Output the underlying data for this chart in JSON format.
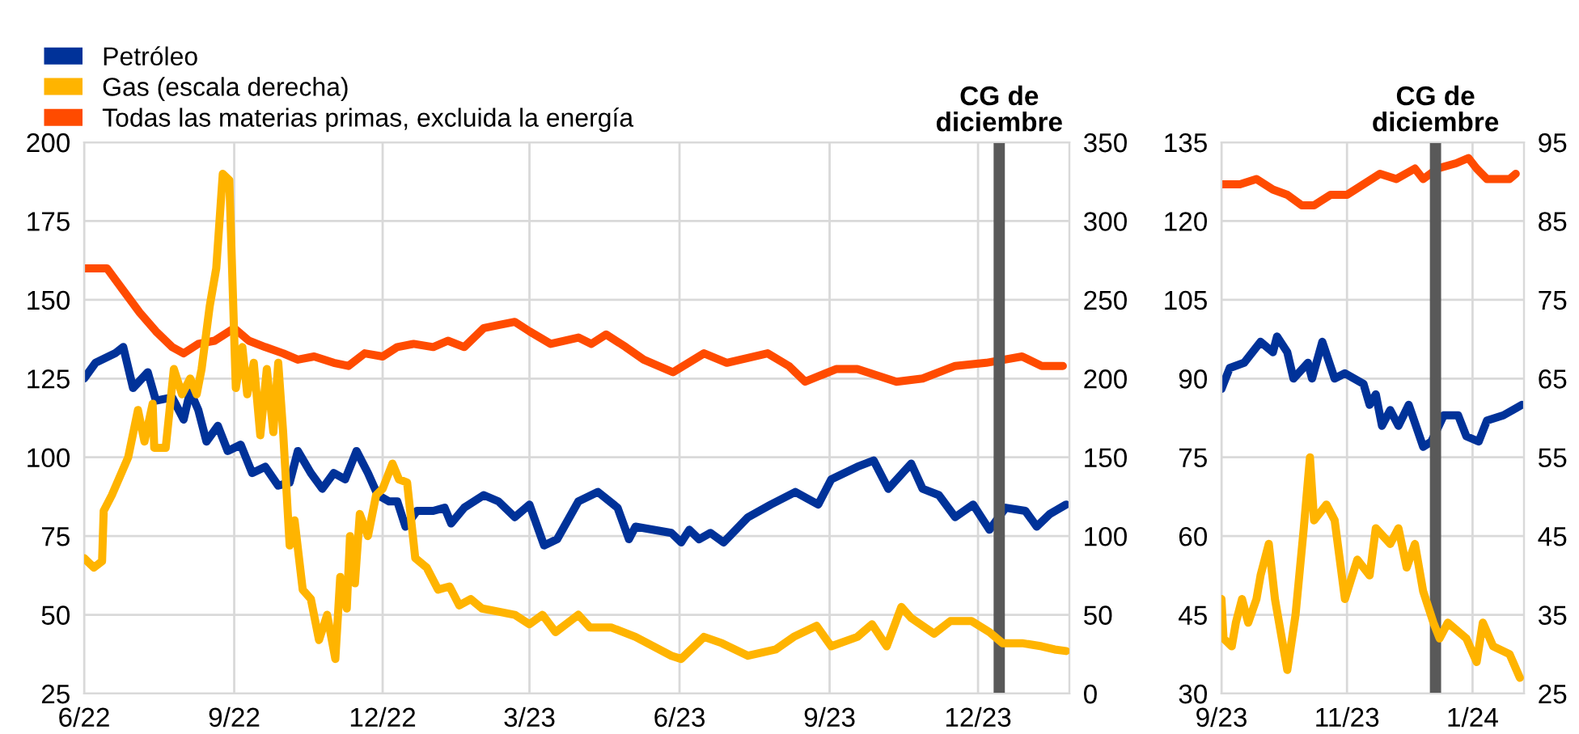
{
  "chart_data": [
    {
      "type": "line",
      "xlim": [
        "2022-06-01",
        "2024-01-26"
      ],
      "xticks": [
        {
          "value": "2022-06-01",
          "label": "6/22"
        },
        {
          "value": "2022-09-01",
          "label": "9/22"
        },
        {
          "value": "2022-12-01",
          "label": "12/22"
        },
        {
          "value": "2023-03-01",
          "label": "3/23"
        },
        {
          "value": "2023-06-01",
          "label": "6/23"
        },
        {
          "value": "2023-09-01",
          "label": "9/23"
        },
        {
          "value": "2023-12-01",
          "label": "12/23"
        }
      ],
      "ylim": [
        25,
        200
      ],
      "yticks": [
        25,
        50,
        75,
        100,
        125,
        150,
        175,
        200
      ],
      "y2lim": [
        0,
        350
      ],
      "y2ticks": [
        0,
        50,
        100,
        150,
        200,
        250,
        300,
        350
      ],
      "grid": true,
      "legend": "top left",
      "line_style": "solid",
      "marker": "none",
      "ref_lines": [
        {
          "axis": "x",
          "value": "2023-12-14",
          "label": "CG de\ndiciembre",
          "color": "#595959"
        }
      ],
      "series": [
        {
          "name": "Petróleo",
          "color": "#003299",
          "x": [
            "2022-06-01",
            "2022-06-08",
            "2022-06-20",
            "2022-06-25",
            "2022-07-01",
            "2022-07-10",
            "2022-07-15",
            "2022-07-25",
            "2022-08-01",
            "2022-08-05",
            "2022-08-10",
            "2022-08-15",
            "2022-08-22",
            "2022-08-28",
            "2022-09-05",
            "2022-09-12",
            "2022-09-20",
            "2022-09-28",
            "2022-10-05",
            "2022-10-10",
            "2022-10-18",
            "2022-10-25",
            "2022-11-01",
            "2022-11-08",
            "2022-11-15",
            "2022-11-22",
            "2022-11-28",
            "2022-12-05",
            "2022-12-10",
            "2022-12-15",
            "2022-12-22",
            "2023-01-01",
            "2023-01-08",
            "2023-01-12",
            "2023-01-20",
            "2023-02-01",
            "2023-02-10",
            "2023-02-20",
            "2023-03-01",
            "2023-03-10",
            "2023-03-18",
            "2023-03-31",
            "2023-04-12",
            "2023-04-24",
            "2023-05-01",
            "2023-05-05",
            "2023-05-27",
            "2023-06-02",
            "2023-06-07",
            "2023-06-13",
            "2023-06-20",
            "2023-06-28",
            "2023-07-13",
            "2023-07-27",
            "2023-08-11",
            "2023-08-25",
            "2023-09-02",
            "2023-09-18",
            "2023-09-28",
            "2023-10-07",
            "2023-10-21",
            "2023-10-28",
            "2023-11-07",
            "2023-11-17",
            "2023-11-28",
            "2023-12-08",
            "2023-12-18",
            "2023-12-30",
            "2024-01-06",
            "2024-01-14",
            "2024-01-24"
          ],
          "values": [
            125,
            130,
            133,
            135,
            122,
            127,
            118,
            119,
            112,
            121,
            115,
            105,
            110,
            102,
            104,
            95,
            97,
            91,
            92,
            102,
            95,
            90,
            95,
            93,
            102,
            95,
            88,
            86,
            86,
            78,
            83,
            83,
            84,
            79,
            84,
            88,
            86,
            81,
            85,
            72,
            74,
            86,
            89,
            84,
            74,
            78,
            76,
            73,
            77,
            74,
            76,
            73,
            81,
            85,
            89,
            85,
            93,
            97,
            99,
            90,
            98,
            90,
            88,
            81,
            85,
            77,
            84,
            83,
            78,
            82,
            85
          ]
        },
        {
          "name": "Gas (escala derecha)",
          "color": "#ffb400",
          "axis": "y2",
          "x": [
            "2022-06-01",
            "2022-06-07",
            "2022-06-12",
            "2022-06-13",
            "2022-06-18",
            "2022-06-28",
            "2022-07-04",
            "2022-07-08",
            "2022-07-13",
            "2022-07-14",
            "2022-07-21",
            "2022-07-26",
            "2022-07-31",
            "2022-08-05",
            "2022-08-09",
            "2022-08-12",
            "2022-08-17",
            "2022-08-21",
            "2022-08-25",
            "2022-08-29",
            "2022-09-02",
            "2022-09-06",
            "2022-09-09",
            "2022-09-13",
            "2022-09-17",
            "2022-09-21",
            "2022-09-25",
            "2022-09-28",
            "2022-10-01",
            "2022-10-05",
            "2022-10-08",
            "2022-10-13",
            "2022-10-18",
            "2022-10-23",
            "2022-10-28",
            "2022-11-02",
            "2022-11-05",
            "2022-11-09",
            "2022-11-11",
            "2022-11-14",
            "2022-11-17",
            "2022-11-22",
            "2022-11-27",
            "2022-12-01",
            "2022-12-07",
            "2022-12-11",
            "2022-12-16",
            "2022-12-21",
            "2022-12-28",
            "2023-01-04",
            "2023-01-11",
            "2023-01-17",
            "2023-01-24",
            "2023-01-31",
            "2023-02-10",
            "2023-02-20",
            "2023-03-01",
            "2023-03-09",
            "2023-03-17",
            "2023-03-31",
            "2023-04-07",
            "2023-04-20",
            "2023-05-05",
            "2023-05-27",
            "2023-06-02",
            "2023-06-10",
            "2023-06-16",
            "2023-06-27",
            "2023-07-13",
            "2023-07-30",
            "2023-08-10",
            "2023-08-24",
            "2023-09-02",
            "2023-09-18",
            "2023-09-27",
            "2023-10-06",
            "2023-10-15",
            "2023-10-21",
            "2023-11-04",
            "2023-11-14",
            "2023-11-27",
            "2023-12-08",
            "2023-12-16",
            "2023-12-28",
            "2024-01-09",
            "2024-01-17",
            "2024-01-24"
          ],
          "values": [
            86,
            80,
            84,
            116,
            126,
            150,
            180,
            160,
            184,
            156,
            156,
            206,
            190,
            200,
            190,
            206,
            246,
            270,
            330,
            326,
            194,
            220,
            190,
            210,
            164,
            206,
            166,
            210,
            166,
            94,
            110,
            66,
            60,
            34,
            50,
            22,
            74,
            54,
            100,
            70,
            114,
            100,
            126,
            130,
            146,
            136,
            134,
            86,
            80,
            66,
            68,
            56,
            60,
            54,
            52,
            50,
            44,
            50,
            39,
            50,
            42,
            42,
            36,
            24,
            22,
            30,
            36,
            32,
            24,
            28,
            36,
            43,
            30,
            36,
            44,
            30,
            55,
            48,
            38,
            46,
            46,
            39,
            32,
            32,
            30,
            28,
            27
          ]
        },
        {
          "name": "Todas las materias primas, excluida la energía",
          "color": "#ff4b00",
          "x": [
            "2022-06-01",
            "2022-06-15",
            "2022-06-25",
            "2022-07-05",
            "2022-07-15",
            "2022-07-25",
            "2022-08-01",
            "2022-08-10",
            "2022-08-20",
            "2022-09-01",
            "2022-09-10",
            "2022-09-20",
            "2022-10-01",
            "2022-10-10",
            "2022-10-20",
            "2022-11-01",
            "2022-11-10",
            "2022-11-20",
            "2022-12-01",
            "2022-12-10",
            "2022-12-20",
            "2023-01-01",
            "2023-01-10",
            "2023-01-20",
            "2023-02-01",
            "2023-02-10",
            "2023-02-20",
            "2023-03-01",
            "2023-03-14",
            "2023-03-31",
            "2023-04-08",
            "2023-04-17",
            "2023-04-29",
            "2023-05-10",
            "2023-05-28",
            "2023-06-16",
            "2023-06-30",
            "2023-07-25",
            "2023-08-07",
            "2023-08-17",
            "2023-09-05",
            "2023-09-18",
            "2023-10-12",
            "2023-10-28",
            "2023-11-17",
            "2023-12-06",
            "2023-12-28",
            "2024-01-09",
            "2024-01-22"
          ],
          "values": [
            160,
            160,
            153,
            146,
            140,
            135,
            133,
            136,
            137,
            141,
            137,
            135,
            133,
            131,
            132,
            130,
            129,
            133,
            132,
            135,
            136,
            135,
            137,
            135,
            141,
            142,
            143,
            140,
            136,
            138,
            136,
            139,
            135,
            131,
            127,
            133,
            130,
            133,
            129,
            124,
            128,
            128,
            124,
            125,
            129,
            130,
            132,
            129,
            129
          ]
        }
      ]
    },
    {
      "type": "line",
      "xlim": [
        "2023-09-01",
        "2024-01-26"
      ],
      "xticks": [
        {
          "value": "2023-09-01",
          "label": "9/23"
        },
        {
          "value": "2023-11-01",
          "label": "11/23"
        },
        {
          "value": "2024-01-01",
          "label": "1/24"
        }
      ],
      "ylim": [
        30,
        135
      ],
      "yticks": [
        30,
        45,
        60,
        75,
        90,
        105,
        120,
        135
      ],
      "y2lim": [
        25,
        95
      ],
      "y2ticks": [
        25,
        35,
        45,
        55,
        65,
        75,
        85,
        95
      ],
      "grid": true,
      "line_style": "solid",
      "marker": "none",
      "ref_lines": [
        {
          "axis": "x",
          "value": "2023-12-14",
          "label": "CG de\ndiciembre",
          "color": "#595959"
        }
      ],
      "series": [
        {
          "color": "#003299",
          "x": [
            "2023-09-01",
            "2023-09-05",
            "2023-09-12",
            "2023-09-20",
            "2023-09-26",
            "2023-09-28",
            "2023-10-03",
            "2023-10-06",
            "2023-10-13",
            "2023-10-15",
            "2023-10-20",
            "2023-10-26",
            "2023-10-31",
            "2023-11-09",
            "2023-11-12",
            "2023-11-15",
            "2023-11-18",
            "2023-11-22",
            "2023-11-26",
            "2023-12-01",
            "2023-12-08",
            "2023-12-12",
            "2023-12-18",
            "2023-12-25",
            "2023-12-29",
            "2024-01-04",
            "2024-01-08",
            "2024-01-16",
            "2024-01-25"
          ],
          "values": [
            88,
            92,
            93,
            97,
            95,
            98,
            95,
            90,
            93,
            90,
            97,
            90,
            91,
            89,
            85,
            87,
            81,
            84,
            81,
            85,
            77,
            78,
            83,
            83,
            79,
            78,
            82,
            83,
            85
          ]
        },
        {
          "color": "#ffb400",
          "axis": "y2",
          "x": [
            "2023-09-01",
            "2023-09-02",
            "2023-09-06",
            "2023-09-08",
            "2023-09-11",
            "2023-09-14",
            "2023-09-18",
            "2023-09-20",
            "2023-09-24",
            "2023-09-27",
            "2023-10-01",
            "2023-10-03",
            "2023-10-07",
            "2023-10-11",
            "2023-10-14",
            "2023-10-16",
            "2023-10-22",
            "2023-10-26",
            "2023-10-31",
            "2023-11-06",
            "2023-11-12",
            "2023-11-15",
            "2023-11-22",
            "2023-11-26",
            "2023-11-30",
            "2023-12-04",
            "2023-12-08",
            "2023-12-13",
            "2023-12-16",
            "2023-12-20",
            "2023-12-29",
            "2024-01-03",
            "2024-01-06",
            "2024-01-11",
            "2024-01-19",
            "2024-01-24"
          ],
          "values": [
            37,
            32,
            31,
            34,
            37,
            34,
            37,
            40,
            44,
            37,
            31,
            28,
            35,
            46,
            55,
            47,
            49,
            47,
            37,
            42,
            40,
            46,
            44,
            46,
            41,
            44,
            38,
            34,
            32,
            34,
            32,
            29,
            34,
            31,
            30,
            27
          ]
        },
        {
          "color": "#ff4b00",
          "x": [
            "2023-09-01",
            "2023-09-10",
            "2023-09-18",
            "2023-09-26",
            "2023-10-03",
            "2023-10-10",
            "2023-10-16",
            "2023-10-24",
            "2023-11-01",
            "2023-11-09",
            "2023-11-17",
            "2023-11-25",
            "2023-12-04",
            "2023-12-08",
            "2023-12-15",
            "2023-12-24",
            "2023-12-30",
            "2024-01-03",
            "2024-01-08",
            "2024-01-19",
            "2024-01-22"
          ],
          "values": [
            127,
            127,
            128,
            126,
            125,
            123,
            123,
            125,
            125,
            127,
            129,
            128,
            130,
            128,
            130,
            131,
            132,
            130,
            128,
            128,
            129
          ]
        }
      ]
    }
  ]
}
